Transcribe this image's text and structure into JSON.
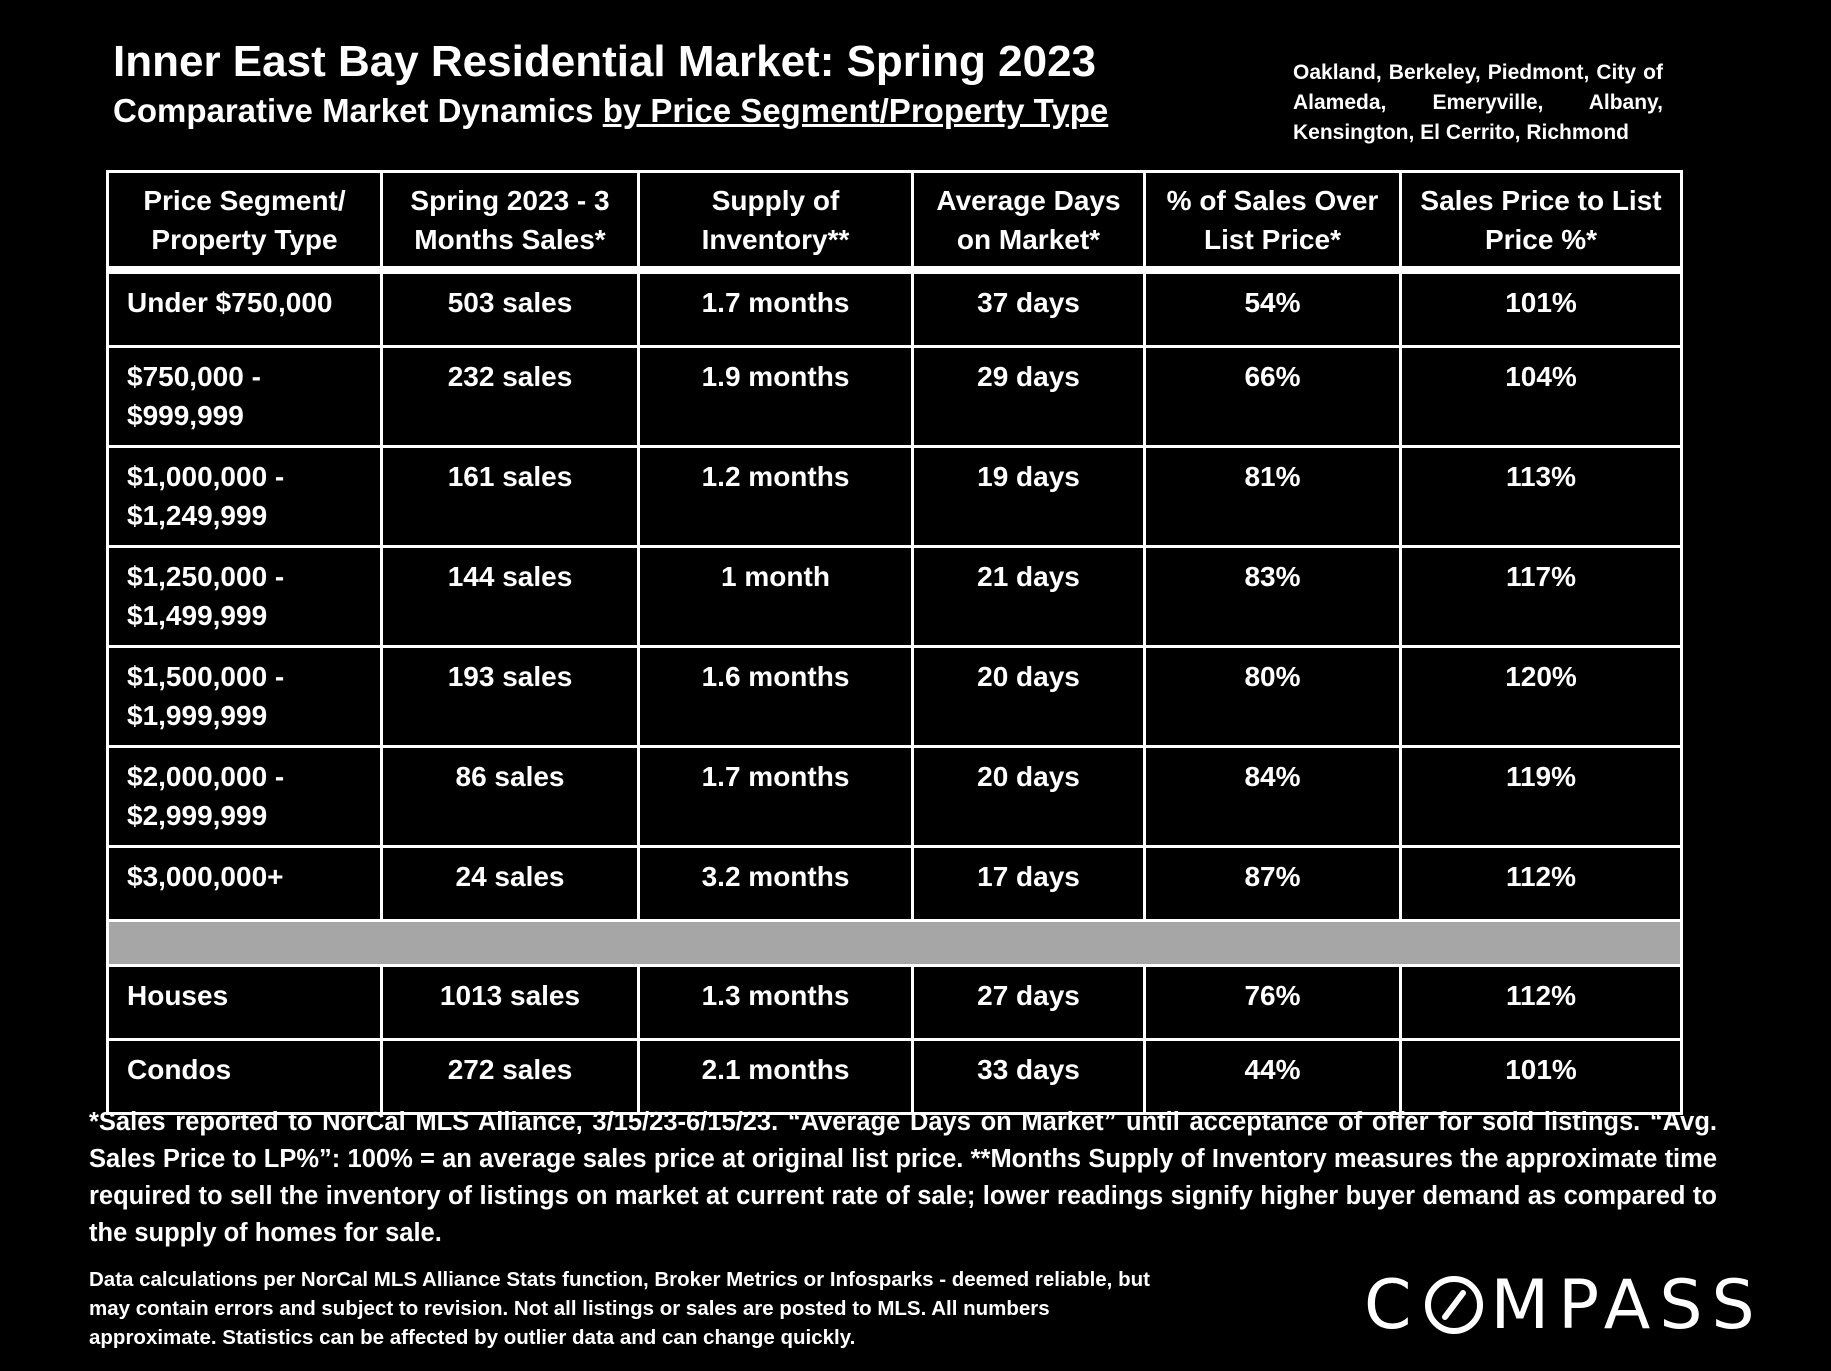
{
  "header": {
    "title": "Inner East Bay Residential Market:  Spring 2023",
    "subtitle_plain": "Comparative Market Dynamics ",
    "subtitle_underlined": "by Price Segment/Property Type",
    "areas": "Oakland, Berkeley, Piedmont, City of Alameda, Emeryville, Albany, Kensington, El Cerrito, Richmond"
  },
  "table": {
    "columns": [
      "Price Segment/ Property Type",
      "Spring 2023 - 3 Months Sales*",
      "Supply of Inventory**",
      "Average Days on Market*",
      "% of Sales Over List Price*",
      "Sales Price to List Price %*"
    ],
    "rows": [
      [
        "Under $750,000",
        "503 sales",
        "1.7 months",
        "37 days",
        "54%",
        "101%"
      ],
      [
        "$750,000 - $999,999",
        "232 sales",
        "1.9 months",
        "29 days",
        "66%",
        "104%"
      ],
      [
        "$1,000,000 - $1,249,999",
        "161 sales",
        "1.2 months",
        "19 days",
        "81%",
        "113%"
      ],
      [
        "$1,250,000 - $1,499,999",
        "144 sales",
        "1 month",
        "21 days",
        "83%",
        "117%"
      ],
      [
        "$1,500,000 - $1,999,999",
        "193 sales",
        "1.6 months",
        "20 days",
        "80%",
        "120%"
      ],
      [
        "$2,000,000 - $2,999,999",
        "86 sales",
        "1.7 months",
        "20 days",
        "84%",
        "119%"
      ],
      [
        "$3,000,000+",
        "24 sales",
        "3.2 months",
        "17 days",
        "87%",
        "112%"
      ],
      [
        "Houses",
        "1013 sales",
        "1.3 months",
        "27 days",
        "76%",
        "112%"
      ],
      [
        "Condos",
        "272 sales",
        "2.1 months",
        "33 days",
        "44%",
        "101%"
      ]
    ]
  },
  "footnote": "*Sales reported to NorCal MLS Alliance, 3/15/23-6/15/23. “Average Days on Market” until acceptance of offer for sold listings. “Avg. Sales Price to LP%”: 100% = an average sales price at original list price. **Months Supply of Inventory measures the approximate time required to sell the inventory of listings on market at current rate of sale; lower readings signify higher buyer demand as compared to the supply of homes for sale.",
  "disclaimer": "Data calculations per NorCal MLS Alliance Stats function, Broker Metrics or Infosparks - deemed reliable, but may contain errors and subject to revision.  Not all listings or sales are posted to MLS. All numbers approximate. Statistics can be affected by outlier data and can change quickly.",
  "logo": {
    "text": "COMPASS",
    "prefix": "C",
    "suffix": "MPASS",
    "mark_icon": "compass-o-slash-icon"
  }
}
